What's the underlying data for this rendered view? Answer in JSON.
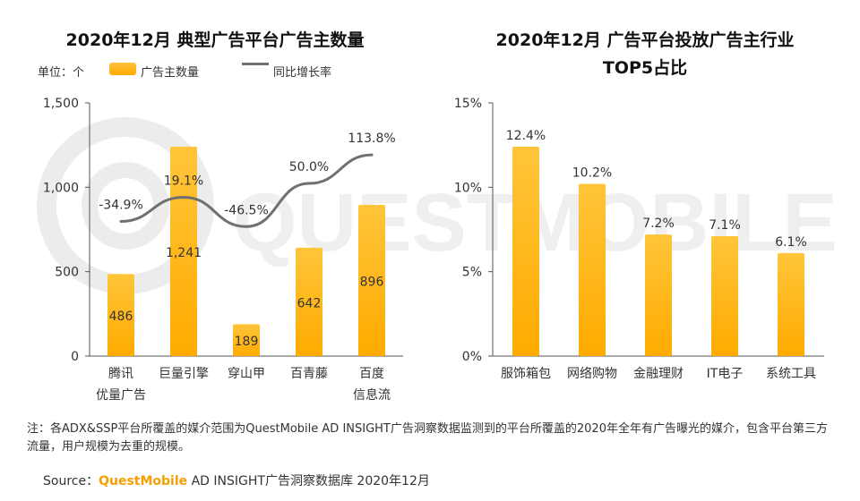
{
  "watermark": {
    "text": "QUESTMOBILE"
  },
  "chart_data": [
    {
      "type": "bar",
      "title": "2020年12月 典型广告平台广告主数量",
      "unit_label": "单位：个",
      "legend": [
        "广告主数量",
        "同比增长率"
      ],
      "categories": [
        [
          "腾讯",
          "优量广告"
        ],
        [
          "巨量引擎"
        ],
        [
          "穿山甲"
        ],
        [
          "百青藤"
        ],
        [
          "百度",
          "信息流"
        ]
      ],
      "values": [
        486,
        1241,
        189,
        642,
        896
      ],
      "value_labels": [
        "486",
        "1,241",
        "189",
        "642",
        "896"
      ],
      "line_series": {
        "name": "同比增长率",
        "values": [
          -34.9,
          19.1,
          -46.5,
          50.0,
          113.8
        ],
        "labels": [
          "-34.9%",
          "19.1%",
          "-46.5%",
          "50.0%",
          "113.8%"
        ]
      },
      "yticks": [
        "0",
        "500",
        "1,000",
        "1,500"
      ],
      "ylim": [
        0,
        1500
      ]
    },
    {
      "type": "bar",
      "title": [
        "2020年12月 广告平台投放广告主行业",
        "TOP5占比"
      ],
      "categories": [
        "服饰箱包",
        "网络购物",
        "金融理财",
        "IT电子",
        "系统工具"
      ],
      "values": [
        12.4,
        10.2,
        7.2,
        7.1,
        6.1
      ],
      "value_labels": [
        "12.4%",
        "10.2%",
        "7.2%",
        "7.1%",
        "6.1%"
      ],
      "yticks": [
        "0%",
        "5%",
        "10%",
        "15%"
      ],
      "ylim": [
        0,
        15
      ]
    }
  ],
  "footer": {
    "note": "注：各ADX&SSP平台所覆盖的媒介范围为QuestMobile AD INSIGHT广告洞察数据监测到的平台所覆盖的2020年全年有广告曝光的媒介，包含平台第三方流量，用户规模为去重的规模。",
    "source_prefix": "Source：",
    "source_brand": "QuestMobile",
    "source_rest": " AD INSIGHT广告洞察数据库 2020年12月"
  }
}
